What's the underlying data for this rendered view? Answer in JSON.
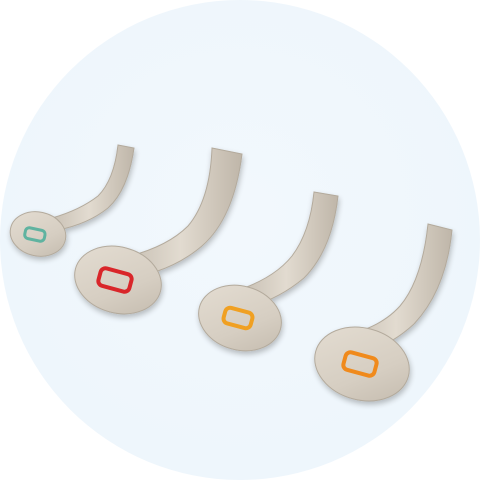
{
  "image": {
    "subject": "oropharyngeal-airways",
    "background_color": "#eef6fc",
    "airway_body_color": "#d6cfc4",
    "airways": [
      {
        "name": "small",
        "insert_color": "#5fb3a0"
      },
      {
        "name": "medium-red",
        "insert_color": "#d9272a"
      },
      {
        "name": "medium-orange",
        "insert_color": "#f0a020"
      },
      {
        "name": "large-orange",
        "insert_color": "#f08a1a"
      }
    ]
  }
}
